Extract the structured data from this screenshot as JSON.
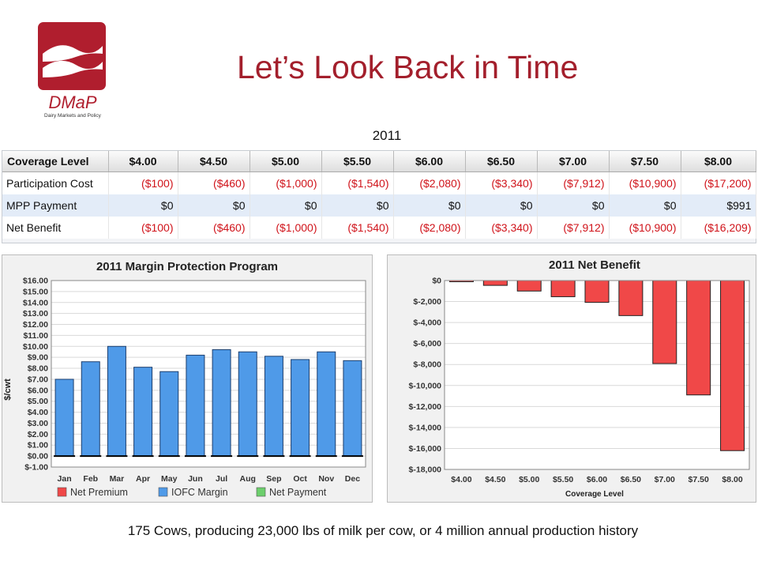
{
  "slide": {
    "title": "Let’s Look Back in Time",
    "year": "2011",
    "footer": "175 Cows, producing 23,000 lbs of milk per cow, or 4 million annual production history",
    "logo": {
      "word": "DMaP",
      "tagline": "Dairy Markets and Policy",
      "color": "#b01e2e"
    }
  },
  "table": {
    "header": [
      "Coverage Level",
      "$4.00",
      "$4.50",
      "$5.00",
      "$5.50",
      "$6.00",
      "$6.50",
      "$7.00",
      "$7.50",
      "$8.00"
    ],
    "rows": [
      {
        "label": "Participation Cost",
        "cells": [
          "($100)",
          "($460)",
          "($1,000)",
          "($1,540)",
          "($2,080)",
          "($3,340)",
          "($7,912)",
          "($10,900)",
          "($17,200)"
        ]
      },
      {
        "label": "MPP Payment",
        "cells": [
          "$0",
          "$0",
          "$0",
          "$0",
          "$0",
          "$0",
          "$0",
          "$0",
          "$991"
        ]
      },
      {
        "label": "Net Benefit",
        "cells": [
          "($100)",
          "($460)",
          "($1,000)",
          "($1,540)",
          "($2,080)",
          "($3,340)",
          "($7,912)",
          "($10,900)",
          "($16,209)"
        ]
      }
    ]
  },
  "chart_data": [
    {
      "type": "bar",
      "title": "2011 Margin Protection Program",
      "ylabel": "$/cwt",
      "xlabel": "",
      "ylim": [
        -1,
        16
      ],
      "yticks": [
        "$-1.00",
        "$0.00",
        "$1.00",
        "$2.00",
        "$3.00",
        "$4.00",
        "$5.00",
        "$6.00",
        "$7.00",
        "$8.00",
        "$9.00",
        "$10.00",
        "$11.00",
        "$12.00",
        "$13.00",
        "$14.00",
        "$15.00",
        "$16.00"
      ],
      "grid": true,
      "legend_position": "bottom",
      "categories": [
        "Jan",
        "Feb",
        "Mar",
        "Apr",
        "May",
        "Jun",
        "Jul",
        "Aug",
        "Sep",
        "Oct",
        "Nov",
        "Dec"
      ],
      "series": [
        {
          "name": "Net Premium",
          "color": "#f04848",
          "values": [
            0,
            0,
            0,
            0,
            0,
            0,
            0,
            0,
            0,
            0,
            0,
            0
          ]
        },
        {
          "name": "IOFC Margin",
          "color": "#4f9ae8",
          "values": [
            7.0,
            8.6,
            10.0,
            8.1,
            7.7,
            9.2,
            9.7,
            9.5,
            9.1,
            8.8,
            9.5,
            8.7
          ]
        },
        {
          "name": "Net Payment",
          "color": "#6ccf6c",
          "values": [
            0,
            0,
            0,
            0,
            0,
            0,
            0,
            0,
            0,
            0,
            0,
            0
          ]
        }
      ]
    },
    {
      "type": "bar",
      "title": "2011 Net Benefit",
      "xlabel": "Coverage Level",
      "ylabel": "",
      "ylim": [
        -18000,
        0
      ],
      "yticks": [
        "$0",
        "$-2,000",
        "$-4,000",
        "$-6,000",
        "$-8,000",
        "$-10,000",
        "$-12,000",
        "$-14,000",
        "$-16,000",
        "$-18,000"
      ],
      "grid": true,
      "categories": [
        "$4.00",
        "$4.50",
        "$5.00",
        "$5.50",
        "$6.00",
        "$6.50",
        "$7.00",
        "$7.50",
        "$8.00"
      ],
      "bar_color": "#f04848",
      "values": [
        -100,
        -460,
        -1000,
        -1540,
        -2080,
        -3340,
        -7912,
        -10900,
        -16209
      ]
    }
  ]
}
